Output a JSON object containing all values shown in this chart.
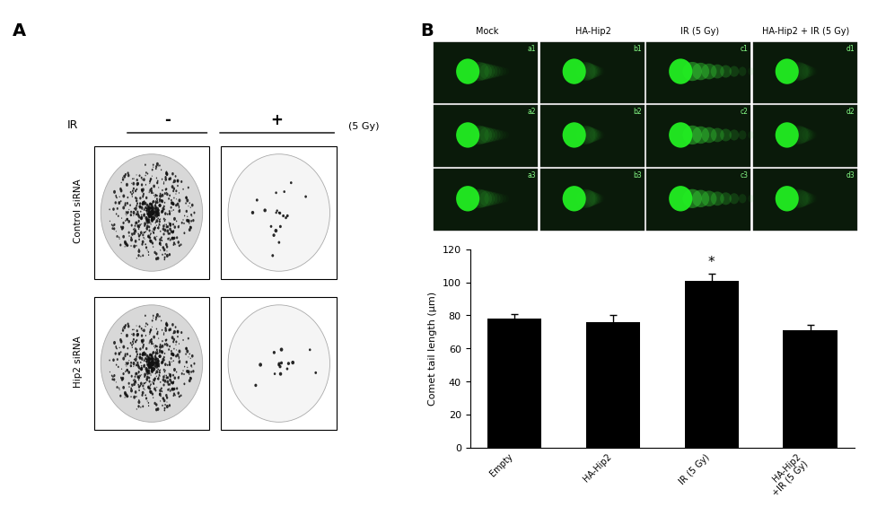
{
  "panel_A_label": "A",
  "panel_B_label": "B",
  "IR_label": "IR",
  "IR_minus": "-",
  "IR_plus": "+",
  "IR_unit": "(5 Gy)",
  "row_labels": [
    "Control siRNA",
    "Hip2 siRNA"
  ],
  "bar_categories": [
    "Empty",
    "HA-Hip2",
    "IR (5 Gy)",
    "HA-Hip2\n+IR (5 Gy)"
  ],
  "bar_values": [
    78,
    76,
    101,
    71
  ],
  "bar_errors": [
    3,
    4,
    4,
    3
  ],
  "bar_color": "#000000",
  "ylabel": "Comet tail length (μm)",
  "ylim": [
    0,
    120
  ],
  "yticks": [
    0,
    20,
    40,
    60,
    80,
    100,
    120
  ],
  "star_bar_index": 2,
  "col_labels_B": [
    "Mock",
    "HA-Hip2",
    "IR (5 Gy)",
    "HA-Hip2 + IR (5 Gy)"
  ],
  "cell_labels": [
    [
      "a1",
      "b1",
      "c1",
      "d1"
    ],
    [
      "a2",
      "b2",
      "c2",
      "d2"
    ],
    [
      "a3",
      "b3",
      "c3",
      "d3"
    ]
  ],
  "background_color": "#ffffff",
  "fig_width": 9.77,
  "fig_height": 5.26
}
